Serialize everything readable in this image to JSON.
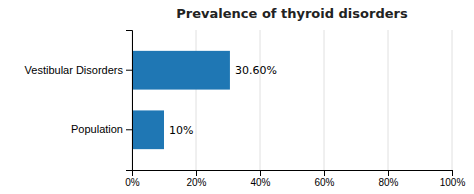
{
  "chart_data": {
    "type": "bar",
    "orientation": "horizontal",
    "title": "Prevalence of thyroid disorders",
    "categories": [
      "Population",
      "Vestibular Disorders"
    ],
    "values": [
      10,
      30.6
    ],
    "value_labels": [
      "10%",
      "30.60%"
    ],
    "data_labels": true,
    "xlim": [
      0,
      100
    ],
    "xticks": [
      {
        "value": 0,
        "label": "0%"
      },
      {
        "value": 20,
        "label": "20%"
      },
      {
        "value": 40,
        "label": "40%"
      },
      {
        "value": 60,
        "label": "60%"
      },
      {
        "value": 80,
        "label": "80%"
      },
      {
        "value": 100,
        "label": "100%"
      }
    ],
    "grid": true
  }
}
